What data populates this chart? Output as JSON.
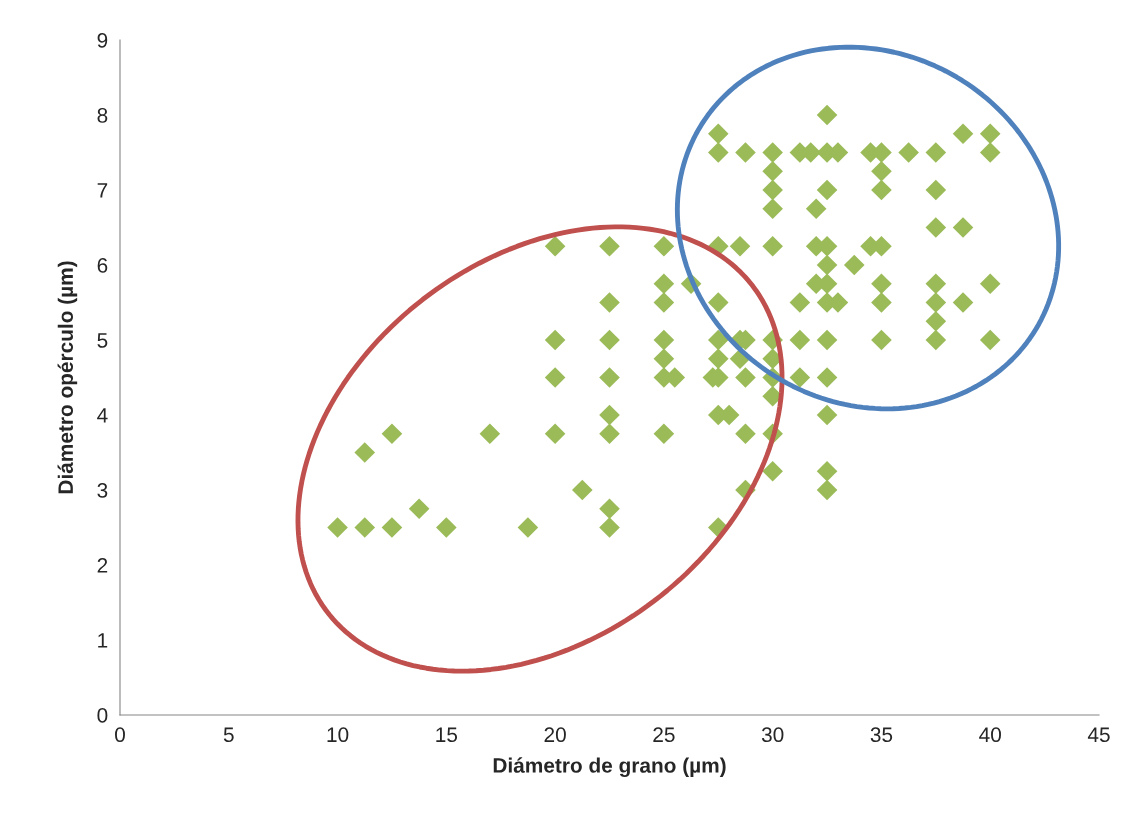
{
  "chart_data": {
    "type": "scatter",
    "xlabel": "Diámetro de grano (µm)",
    "ylabel": "Diámetro opérculo (µm)",
    "xlim": [
      0,
      45
    ],
    "xticks": [
      0,
      5,
      10,
      15,
      20,
      25,
      30,
      35,
      40,
      45
    ],
    "ylim": [
      0,
      9
    ],
    "yticks": [
      0,
      1,
      2,
      3,
      4,
      5,
      6,
      7,
      8,
      9
    ],
    "grid": false,
    "marker": "diamond",
    "series": [
      {
        "color": "#9bbb59",
        "x": [
          10,
          11.25,
          12.5,
          15,
          18.75,
          13.75,
          11.25,
          12.5,
          17,
          21.25,
          20,
          20,
          20,
          20,
          22.5,
          22.5,
          22.5,
          22.5,
          22.5,
          22.5,
          22.5,
          22.5,
          25,
          25,
          25,
          25,
          25,
          25,
          25,
          25.5,
          26.25,
          27.25,
          27.5,
          27.5,
          27.5,
          27.5,
          27.5,
          27.5,
          27.5,
          27.5,
          27.5,
          28,
          28.5,
          28.5,
          28.75,
          28.75,
          28.75,
          28.75,
          28.5,
          28.75,
          30,
          30,
          30,
          30,
          30,
          30,
          30,
          30,
          30,
          30,
          30,
          31.25,
          31.25,
          31.25,
          31.25,
          31.75,
          32,
          32,
          32,
          32.5,
          32.5,
          32.5,
          32.5,
          32.5,
          32.5,
          32.5,
          32.5,
          32.5,
          32.5,
          32.5,
          32.5,
          33,
          33,
          33.75,
          34.5,
          34.5,
          35,
          35,
          35,
          35,
          35,
          35,
          35,
          36.25,
          37.5,
          37.5,
          37.5,
          37.5,
          37.5,
          37.5,
          37.5,
          38.75,
          38.75,
          38.75,
          40,
          40,
          40,
          40
        ],
        "values": [
          2.5,
          2.5,
          2.5,
          2.5,
          2.5,
          2.75,
          3.5,
          3.75,
          3.75,
          3.0,
          3.75,
          4.5,
          5,
          6.25,
          2.5,
          2.75,
          3.75,
          4,
          4.5,
          5,
          5.5,
          6.25,
          3.75,
          4.5,
          4.75,
          5,
          5.5,
          5.75,
          6.25,
          4.5,
          5.75,
          4.5,
          2.5,
          4,
          4.5,
          4.75,
          5,
          5.5,
          6.25,
          7.5,
          7.75,
          4,
          4.75,
          5,
          5,
          4.5,
          3.75,
          3,
          6.25,
          7.5,
          3.25,
          3.75,
          4.25,
          4.5,
          4.75,
          5,
          6.25,
          6.75,
          7,
          7.25,
          7.5,
          4.5,
          5,
          5.5,
          7.5,
          7.5,
          6.75,
          6.25,
          5.75,
          3,
          3.25,
          4,
          4.5,
          5,
          5.5,
          5.75,
          6,
          6.25,
          7,
          7.5,
          8,
          5.5,
          7.5,
          6,
          6.25,
          7.5,
          7.5,
          7.25,
          7,
          6.25,
          5.75,
          5.5,
          5,
          7.5,
          5,
          5.25,
          5.5,
          5.75,
          6.5,
          7,
          7.5,
          7.75,
          6.5,
          5.5,
          7.75,
          7.5,
          5.75,
          5
        ]
      }
    ]
  }
}
